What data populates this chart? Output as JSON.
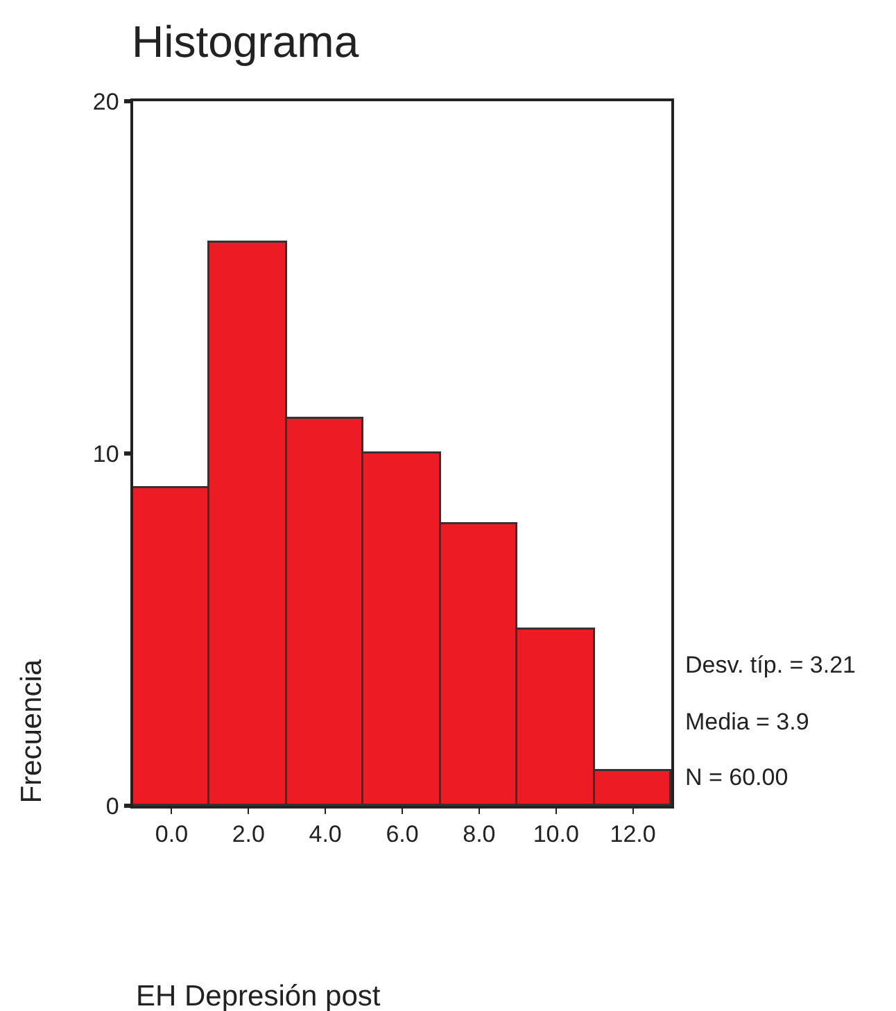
{
  "chart_data": {
    "type": "histogram",
    "title": "Histograma",
    "xlabel": "EH Depresión post",
    "ylabel": "Frecuencia",
    "bins": [
      -1,
      1,
      3,
      5,
      7,
      9,
      11,
      13
    ],
    "values": [
      9,
      16,
      11,
      10,
      8,
      5,
      1
    ],
    "color": "#ed1c24",
    "xlim": [
      -1,
      13
    ],
    "xticks": [
      {
        "value": 0,
        "label": "0.0"
      },
      {
        "value": 2,
        "label": "2.0"
      },
      {
        "value": 4,
        "label": "4.0"
      },
      {
        "value": 6,
        "label": "6.0"
      },
      {
        "value": 8,
        "label": "8.0"
      },
      {
        "value": 10,
        "label": "10.0"
      },
      {
        "value": 12,
        "label": "12.0"
      }
    ],
    "ylim": [
      0,
      20
    ],
    "yticks": [
      0,
      10,
      20
    ],
    "annotations": [
      "Desv. típ. = 3.21",
      "Media = 3.9",
      "N = 60.00"
    ]
  }
}
